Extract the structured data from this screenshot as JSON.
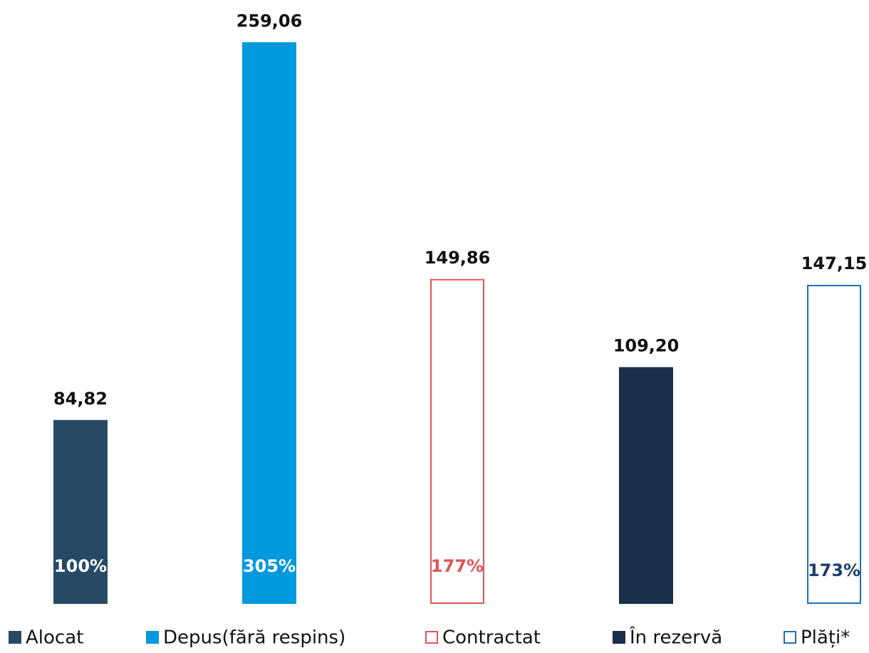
{
  "chart_data": {
    "type": "bar",
    "ylim": [
      0,
      270
    ],
    "series": [
      {
        "name": "Alocat",
        "color": "#264a66",
        "style": "filled",
        "values": [
          84.82
        ],
        "value_labels": [
          "84,82"
        ],
        "percent_labels": [
          "100%"
        ]
      },
      {
        "name": "Depus(fără respins)",
        "color": "#0099dd",
        "style": "filled",
        "values": [
          259.06
        ],
        "value_labels": [
          "259,06"
        ],
        "percent_labels": [
          "305%"
        ]
      },
      {
        "name": "Contractat",
        "color": "#e05555",
        "style": "outline",
        "values": [
          149.86
        ],
        "value_labels": [
          "149,86"
        ],
        "percent_labels": [
          "177%"
        ]
      },
      {
        "name": "În rezervă",
        "color": "#1b2e4a",
        "style": "filled",
        "values": [
          109.2
        ],
        "value_labels": [
          "109,20"
        ]
      },
      {
        "name": "Plăți*",
        "color": "#1f6fb5",
        "style": "outline",
        "values": [
          147.15
        ],
        "value_labels": [
          "147,15"
        ],
        "percent_labels": [
          "173%"
        ]
      }
    ]
  }
}
